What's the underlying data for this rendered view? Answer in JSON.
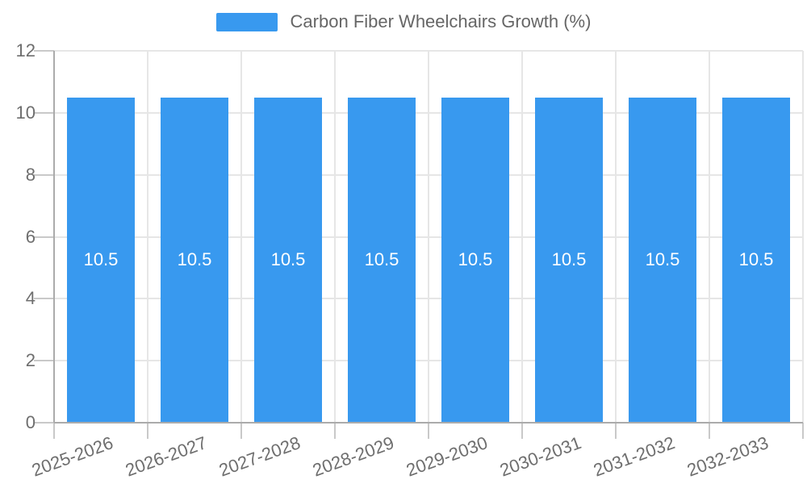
{
  "chart_data": {
    "type": "bar",
    "title": "Carbon Fiber Wheelchairs Growth (%)",
    "categories": [
      "2025-2026",
      "2026-2027",
      "2027-2028",
      "2028-2029",
      "2029-2030",
      "2030-2031",
      "2031-2032",
      "2032-2033"
    ],
    "series": [
      {
        "name": "Carbon Fiber Wheelchairs Growth (%)",
        "values": [
          10.5,
          10.5,
          10.5,
          10.5,
          10.5,
          10.5,
          10.5,
          10.5
        ]
      }
    ],
    "value_labels": [
      "10.5",
      "10.5",
      "10.5",
      "10.5",
      "10.5",
      "10.5",
      "10.5",
      "10.5"
    ],
    "xlabel": "",
    "ylabel": "",
    "ylim": [
      0,
      12
    ],
    "ytick_step": 2,
    "ytick_labels": [
      "0",
      "2",
      "4",
      "6",
      "8",
      "10",
      "12"
    ],
    "grid": true,
    "legend_position": "top-center",
    "colors": {
      "bar": "#3899EF",
      "gridline": "#E6E6E6",
      "axis_line": "#ABABAB",
      "tick_mark": "#C9C9C9",
      "axis_label_text": "#6E6E6E",
      "legend_text": "#666666",
      "bar_value_text": "#FFFFFF",
      "background": "#FFFFFF"
    }
  }
}
